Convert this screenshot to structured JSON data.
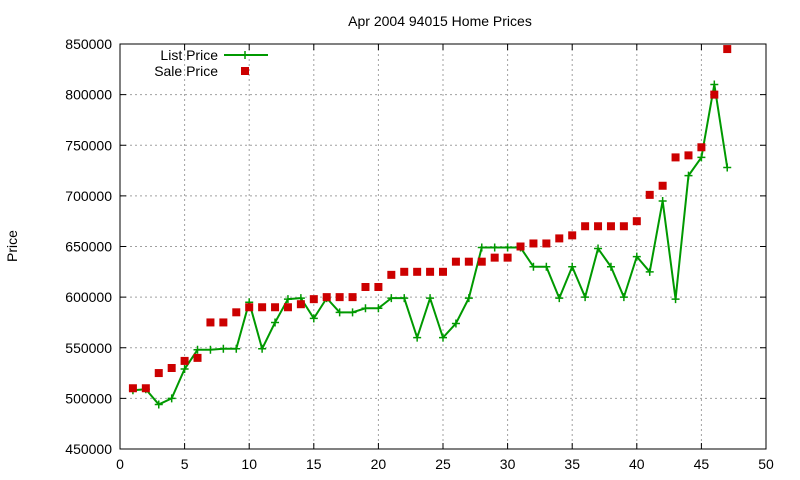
{
  "chart_data": {
    "type": "line",
    "title": "Apr 2004 94015 Home Prices",
    "xlabel": "",
    "ylabel": "Price",
    "xlim": [
      0,
      50
    ],
    "ylim": [
      450000,
      850000
    ],
    "x_ticks": [
      "0",
      "5",
      "10",
      "15",
      "20",
      "25",
      "30",
      "35",
      "40",
      "45",
      "50"
    ],
    "y_ticks": [
      "450000",
      "500000",
      "550000",
      "600000",
      "650000",
      "700000",
      "750000",
      "800000",
      "850000"
    ],
    "grid": true,
    "legend_position": "top-left",
    "series": [
      {
        "name": "List Price",
        "style": "line-with-plus-markers",
        "color": "#009900",
        "x": [
          1,
          2,
          3,
          4,
          5,
          6,
          7,
          8,
          9,
          10,
          11,
          12,
          13,
          14,
          15,
          16,
          17,
          18,
          19,
          20,
          21,
          22,
          23,
          24,
          25,
          26,
          27,
          28,
          29,
          30,
          31,
          32,
          33,
          34,
          35,
          36,
          37,
          38,
          39,
          40,
          41,
          42,
          43,
          44,
          45,
          46,
          47
        ],
        "y": [
          508000,
          509000,
          494000,
          500000,
          529000,
          548000,
          548000,
          549000,
          549000,
          595000,
          549000,
          575000,
          598000,
          599000,
          579000,
          599000,
          585000,
          585000,
          589000,
          589000,
          599000,
          599000,
          560000,
          599000,
          560000,
          574000,
          599000,
          649000,
          649000,
          649000,
          649000,
          630000,
          630000,
          599000,
          630000,
          600000,
          648000,
          630000,
          600000,
          640000,
          625000,
          695000,
          598000,
          720000,
          738000,
          810000,
          728000
        ]
      },
      {
        "name": "Sale Price",
        "style": "square-markers",
        "color": "#cc0000",
        "x": [
          1,
          2,
          3,
          4,
          5,
          6,
          7,
          8,
          9,
          10,
          11,
          12,
          13,
          14,
          15,
          16,
          17,
          18,
          19,
          20,
          21,
          22,
          23,
          24,
          25,
          26,
          27,
          28,
          29,
          30,
          31,
          32,
          33,
          34,
          35,
          36,
          37,
          38,
          39,
          40,
          41,
          42,
          43,
          44,
          45,
          46,
          47
        ],
        "y": [
          510000,
          510000,
          525000,
          530000,
          537000,
          540000,
          575000,
          575000,
          585000,
          590000,
          590000,
          590000,
          590000,
          593000,
          598000,
          600000,
          600000,
          600000,
          610000,
          610000,
          622000,
          625000,
          625000,
          625000,
          625000,
          635000,
          635000,
          635000,
          639000,
          639000,
          650000,
          653000,
          653000,
          658000,
          661000,
          670000,
          670000,
          670000,
          670000,
          675000,
          701000,
          710000,
          738000,
          740000,
          748000,
          800000,
          845000
        ]
      }
    ]
  }
}
